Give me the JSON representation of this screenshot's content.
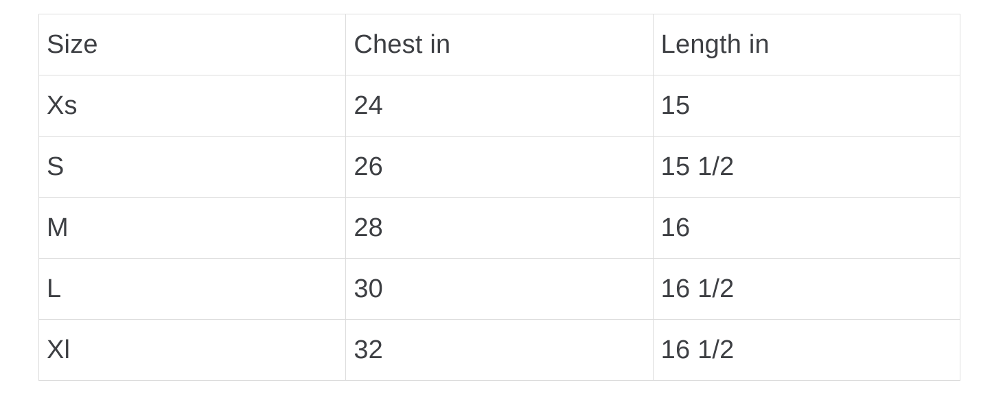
{
  "table": {
    "columns": [
      "Size",
      "Chest in",
      "Length in"
    ],
    "rows": [
      [
        "Xs",
        "24",
        "15"
      ],
      [
        "S",
        "26",
        "15 1/2"
      ],
      [
        "M",
        "28",
        "16"
      ],
      [
        "L",
        "30",
        "16 1/2"
      ],
      [
        "Xl",
        "32",
        "16 1/2"
      ]
    ]
  },
  "colors": {
    "border": "#dcdcdc",
    "text": "#3d3f43",
    "background": "#ffffff"
  }
}
